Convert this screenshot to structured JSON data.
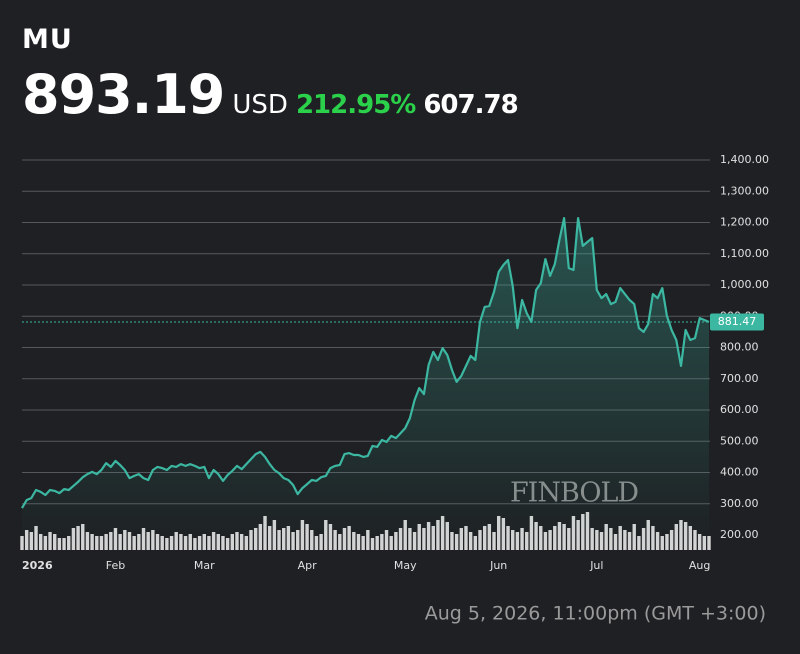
{
  "chart_data": {
    "type": "line",
    "title": "MU",
    "price": "893.19",
    "currency": "USD",
    "change_percent": "212.95%",
    "change": "607.78",
    "timestamp": "Aug 5, 2026, 11:00pm (GMT +3:00)",
    "watermark": "FINBOLD",
    "color": "#3cb7a2",
    "volume_color": "#d4d4d4",
    "grid": true,
    "categories": [
      "2026",
      null,
      null,
      null,
      null,
      null,
      null,
      null,
      null,
      null,
      null,
      null,
      null,
      null,
      null,
      null,
      null,
      null,
      null,
      null,
      "Feb",
      null,
      null,
      null,
      null,
      null,
      null,
      null,
      null,
      null,
      null,
      null,
      null,
      null,
      null,
      null,
      null,
      null,
      null,
      "Mar",
      null,
      null,
      null,
      null,
      null,
      null,
      null,
      null,
      null,
      null,
      null,
      null,
      null,
      null,
      null,
      null,
      null,
      null,
      null,
      null,
      null,
      "Apr",
      null,
      null,
      null,
      null,
      null,
      null,
      null,
      null,
      null,
      null,
      null,
      null,
      null,
      null,
      null,
      null,
      null,
      null,
      null,
      null,
      "May",
      null,
      null,
      null,
      null,
      null,
      null,
      null,
      null,
      null,
      null,
      null,
      null,
      null,
      null,
      null,
      null,
      null,
      null,
      null,
      "Jun",
      null,
      null,
      null,
      null,
      null,
      null,
      null,
      null,
      null,
      null,
      null,
      null,
      null,
      null,
      null,
      null,
      null,
      null,
      null,
      null,
      "Jul",
      null,
      null,
      null,
      null,
      null,
      null,
      null,
      null,
      null,
      null,
      null,
      null,
      null,
      null,
      null,
      null,
      null,
      null,
      null,
      null,
      null,
      "Aug",
      null,
      null
    ],
    "values": [
      286,
      312,
      318,
      344,
      338,
      328,
      344,
      341,
      334,
      347,
      344,
      357,
      370,
      385,
      395,
      402,
      395,
      408,
      430,
      418,
      437,
      424,
      408,
      382,
      389,
      395,
      382,
      376,
      408,
      418,
      414,
      408,
      421,
      418,
      427,
      421,
      427,
      421,
      414,
      418,
      382,
      408,
      395,
      373,
      392,
      405,
      421,
      411,
      427,
      443,
      459,
      466,
      450,
      427,
      408,
      398,
      382,
      376,
      360,
      331,
      350,
      363,
      376,
      373,
      385,
      389,
      414,
      421,
      424,
      459,
      462,
      456,
      456,
      450,
      453,
      485,
      482,
      504,
      498,
      517,
      510,
      526,
      542,
      574,
      632,
      670,
      651,
      744,
      786,
      760,
      798,
      776,
      728,
      690,
      709,
      741,
      773,
      760,
      882,
      930,
      933,
      978,
      1042,
      1064,
      1080,
      997,
      862,
      952,
      910,
      882,
      984,
      1006,
      1083,
      1029,
      1067,
      1144,
      1214,
      1054,
      1048,
      1214,
      1125,
      1138,
      1150,
      984,
      958,
      971,
      939,
      946,
      990,
      971,
      952,
      939,
      862,
      850,
      875,
      971,
      958,
      990,
      901,
      856,
      824,
      741,
      856,
      824,
      830,
      894,
      888,
      881.47
    ],
    "last_label": "881.47",
    "volume": [
      14,
      20,
      18,
      24,
      16,
      14,
      18,
      16,
      12,
      12,
      14,
      22,
      24,
      26,
      18,
      16,
      14,
      14,
      16,
      18,
      22,
      16,
      20,
      18,
      14,
      16,
      22,
      18,
      20,
      16,
      14,
      12,
      14,
      18,
      16,
      14,
      16,
      12,
      14,
      16,
      14,
      18,
      16,
      14,
      12,
      16,
      18,
      16,
      14,
      20,
      22,
      26,
      34,
      24,
      30,
      20,
      22,
      24,
      18,
      20,
      30,
      26,
      20,
      14,
      16,
      30,
      26,
      20,
      16,
      22,
      24,
      18,
      16,
      14,
      20,
      12,
      14,
      16,
      20,
      14,
      18,
      22,
      30,
      22,
      18,
      26,
      22,
      28,
      24,
      30,
      34,
      28,
      18,
      16,
      22,
      24,
      18,
      14,
      20,
      24,
      26,
      18,
      34,
      32,
      24,
      20,
      18,
      22,
      18,
      34,
      28,
      24,
      18,
      20,
      24,
      28,
      26,
      22,
      34,
      30,
      36,
      38,
      22,
      20,
      18,
      26,
      22,
      16,
      24,
      20,
      18,
      26,
      14,
      22,
      30,
      24,
      18,
      14,
      16,
      20,
      26,
      30,
      28,
      24,
      20,
      16,
      14,
      14
    ],
    "volume_ylim": [
      0,
      40
    ],
    "ylim": [
      200,
      1400
    ],
    "yticks": [
      {
        "value": 200,
        "label": "200.00"
      },
      {
        "value": 300,
        "label": "300.00"
      },
      {
        "value": 400,
        "label": "400.00"
      },
      {
        "value": 500,
        "label": "500.00"
      },
      {
        "value": 600,
        "label": "600.00"
      },
      {
        "value": 700,
        "label": "700.00"
      },
      {
        "value": 800,
        "label": "800.00"
      },
      {
        "value": 900,
        "label": "900.00"
      },
      {
        "value": 1000,
        "label": "1,000.00"
      },
      {
        "value": 1100,
        "label": "1,100.00"
      },
      {
        "value": 1200,
        "label": "1,200.00"
      },
      {
        "value": 1300,
        "label": "1,300.00"
      },
      {
        "value": 1400,
        "label": "1,400.00"
      }
    ]
  }
}
